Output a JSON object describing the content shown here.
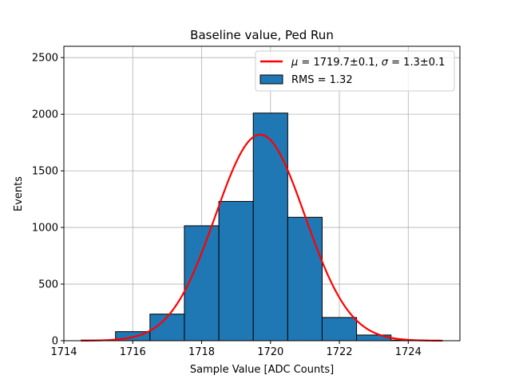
{
  "chart_data": {
    "type": "bar",
    "title": "Baseline value, Ped Run",
    "xlabel": "Sample Value [ADC Counts]",
    "ylabel": "Events",
    "xlim": [
      1714,
      1725.5
    ],
    "ylim": [
      0,
      2600
    ],
    "xticks": [
      1714,
      1716,
      1718,
      1720,
      1722,
      1724
    ],
    "yticks": [
      0,
      500,
      1000,
      1500,
      2000,
      2500
    ],
    "grid": true,
    "legend_position": "top-right",
    "bins": [
      {
        "left": 1714.5,
        "right": 1715.5,
        "count": 5
      },
      {
        "left": 1715.5,
        "right": 1716.5,
        "count": 80
      },
      {
        "left": 1716.5,
        "right": 1717.5,
        "count": 235
      },
      {
        "left": 1717.5,
        "right": 1718.5,
        "count": 1015
      },
      {
        "left": 1718.5,
        "right": 1719.5,
        "count": 1230
      },
      {
        "left": 1719.5,
        "right": 1720.5,
        "count": 2010
      },
      {
        "left": 1720.5,
        "right": 1721.5,
        "count": 1090
      },
      {
        "left": 1721.5,
        "right": 1722.5,
        "count": 205
      },
      {
        "left": 1722.5,
        "right": 1723.5,
        "count": 50
      },
      {
        "left": 1723.5,
        "right": 1724.5,
        "count": 5
      }
    ],
    "fit": {
      "mu": 1719.7,
      "sigma": 1.3,
      "amplitude": 1820,
      "x_range": [
        1714.5,
        1725
      ]
    },
    "series": [
      {
        "name": "fit",
        "label_math": "μ = 1719.7±0.1, σ = 1.3±0.1",
        "color": "#ff0000"
      },
      {
        "name": "RMS = 1.32",
        "color": "#1f77b4"
      }
    ]
  }
}
